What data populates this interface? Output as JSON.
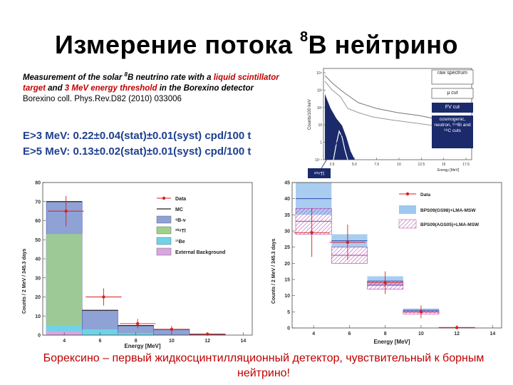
{
  "title": {
    "main": "Измерение потока ",
    "superscript": "8",
    "suffix": "B нейтрино"
  },
  "reference": {
    "p1": "Measurement of the solar ",
    "p1_sup": "8",
    "p2": "B  neutrino rate with a ",
    "p3_red": "liquid scintillator target",
    "p4": " and ",
    "p5_red": "3 MeV energy threshold",
    "p6": " in the Borexino detector",
    "citation": "Borexino coll. Phys.Rev.D82 (2010) 033006"
  },
  "results": [
    "E>3 MeV: 0.22±0.04(stat)±0.01(syst) cpd/100 t",
    "E>5 MeV: 0.13±0.02(stat)±0.01(syst) cpd/100 t"
  ],
  "footer": "Борексино – первый жидкосцинтилляционный детектор, чувствительный к борным нейтрино!",
  "colors": {
    "title": "#000000",
    "results": "#1f3f8f",
    "footer": "#c00000",
    "legend_box": "#1b2a6b"
  },
  "chart_data": [
    {
      "type": "line",
      "ylabel": "Counts/100 keV",
      "xlabel": "Energy [MeV]",
      "x_ticks": [
        "2.5",
        "5.0",
        "7.5",
        "10",
        "12.5",
        "15",
        "17.5"
      ],
      "y_ticks": [
        "10⁴",
        "10³",
        "10²",
        "10",
        "1",
        "10⁻¹"
      ],
      "log_y": true,
      "legend": [
        "raw spectrum",
        "μ cut",
        "FV cut",
        "cosmogenic, neutron, ²¹⁴Bi and ⁶⁸C cuts"
      ],
      "annotation": "²⁰⁸Tl"
    },
    {
      "type": "bar",
      "xlabel": "Energy [MeV]",
      "ylabel": "Counts / 2 MeV / 345.3 days",
      "xlim": [
        2.8,
        14.5
      ],
      "ylim": [
        0,
        80
      ],
      "x_ticks": [
        "4",
        "6",
        "8",
        "10",
        "12",
        "14"
      ],
      "y_ticks": [
        "0",
        "10",
        "20",
        "30",
        "40",
        "50",
        "60",
        "70",
        "80"
      ],
      "bin_edges": [
        3,
        5,
        7,
        9,
        11,
        13
      ],
      "legend": [
        "Data",
        "MC",
        "⁸B-ν",
        "²⁰⁸Tl",
        "¹¹Be",
        "External Background"
      ],
      "series": [
        {
          "name": "MC",
          "values": [
            70,
            13,
            5,
            3,
            0.5
          ]
        },
        {
          "name": "⁸B-ν",
          "values": [
            70,
            13,
            5,
            3,
            0.5
          ]
        },
        {
          "name": "²⁰⁸Tl",
          "values": [
            48,
            0,
            0,
            0,
            0
          ]
        },
        {
          "name": "¹¹Be",
          "values": [
            3,
            3,
            1,
            0,
            0
          ]
        },
        {
          "name": "External Background",
          "values": [
            2,
            0,
            0,
            0,
            0
          ]
        },
        {
          "name": "Data",
          "x": [
            4.1,
            6.2,
            8.1,
            10.0,
            12.0
          ],
          "y": [
            65,
            20,
            6,
            3,
            0.5
          ],
          "yerr": [
            8,
            4.5,
            2.5,
            1.8,
            0.7
          ]
        }
      ]
    },
    {
      "type": "bar",
      "xlabel": "Energy [MeV]",
      "ylabel": "Counts / 2 MeV / 345.3 days",
      "xlim": [
        2.8,
        14.5
      ],
      "ylim": [
        0,
        45
      ],
      "x_ticks": [
        "4",
        "6",
        "8",
        "10",
        "12",
        "14"
      ],
      "y_ticks": [
        "0",
        "5",
        "10",
        "15",
        "20",
        "25",
        "30",
        "35",
        "40",
        "45"
      ],
      "bin_edges": [
        3,
        5,
        7,
        9,
        11,
        13
      ],
      "legend": [
        "Data",
        "BPS09(GS98)+LMA-MSW",
        "BPS09(AGS05)+LMA-MSW"
      ],
      "series": [
        {
          "name": "BPS09(GS98)+LMA-MSW",
          "lo": [
            35,
            25,
            13,
            5,
            0
          ],
          "hi": [
            45,
            29,
            16,
            6,
            0.2
          ]
        },
        {
          "name": "BPS09(AGS05)+LMA-MSW",
          "lo": [
            29,
            20,
            12,
            4.3,
            0
          ],
          "hi": [
            37,
            25,
            14.5,
            5.5,
            0.2
          ]
        },
        {
          "name": "Data",
          "x": [
            3.9,
            5.9,
            8.0,
            10.0,
            12.0
          ],
          "y": [
            29.5,
            26.5,
            14.0,
            5.0,
            0.1
          ],
          "yerr": [
            7.5,
            5.5,
            3.5,
            2.0,
            0.6
          ]
        }
      ]
    }
  ]
}
